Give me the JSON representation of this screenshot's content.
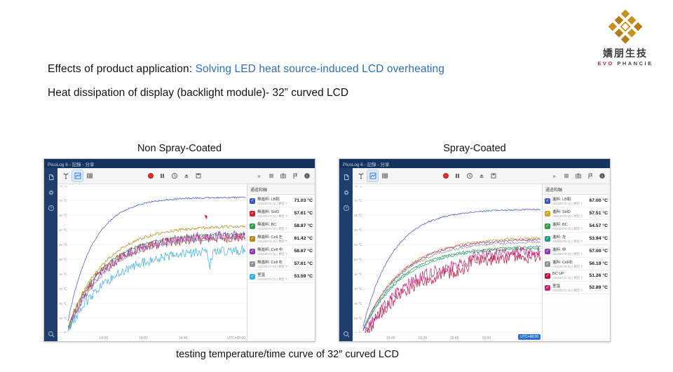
{
  "ui": {
    "more_glyph": "»",
    "check_glyph": "✓"
  },
  "slide": {
    "title_prefix": "Effects of product application: ",
    "title_highlight": "Solving LED heat source-induced LCD overheating",
    "subtitle": "Heat dissipation of display (backlight module)- 32” curved LCD",
    "caption": "testing temperature/time curve of 32″ curved LCD",
    "logo": {
      "brand_cn": "嬌朋生技",
      "brand_en_red": "EVO",
      "brand_en_rest": "PHANCIE",
      "gold": "#c8921e",
      "red": "#c0282d"
    }
  },
  "panels": [
    {
      "heading": "Non Spray-Coated",
      "window_title": "PicoLog 6 - 記錄 - 分享",
      "legend_header": "通道和軸",
      "utc_label": "UTC+08:00",
      "chart_data": {
        "type": "line",
        "yunit": "℃",
        "ylim": [
          25,
          75
        ],
        "ytick_step": 5,
        "x_ticks": [
          "14:00",
          "14:20",
          "14:40"
        ],
        "annotation": {
          "shape": "red-arrow",
          "x_frac": 0.78,
          "temp": 63.5,
          "color": "#d21f1f"
        },
        "series": [
          {
            "label": "無進料: LB和",
            "sub": "A0110/073 (1) | 類型 T",
            "display": "71.03 °C",
            "color": "#3a55c4",
            "start": 29,
            "end": 71.03,
            "rate": 7,
            "noise": 0.25,
            "seed": 11
          },
          {
            "label": "無進料: SHD",
            "sub": "A0110/073 (2) | 類型 T",
            "display": "57.61 °C",
            "color": "#cf2133",
            "start": 27,
            "end": 57.61,
            "rate": 5,
            "noise": 1.7,
            "seed": 23
          },
          {
            "label": "無進料: BC",
            "sub": "A0110/073 (3) | 類型 T",
            "display": "58.87 °C",
            "color": "#2f9e44",
            "start": 27,
            "end": 58.87,
            "rate": 5,
            "noise": 0.4,
            "seed": 37
          },
          {
            "label": "無進料: Cell 左",
            "sub": "A0110/073 (4) | 類型 T",
            "display": "61.42 °C",
            "color": "#b08c1a",
            "start": 26.5,
            "end": 61.42,
            "rate": 5,
            "noise": 0.5,
            "seed": 41
          },
          {
            "label": "無進料: Cell 中",
            "sub": "A0110/073 (5) | 類型 T",
            "display": "58.67 °C",
            "color": "#8f3ab5",
            "start": 26,
            "end": 58.67,
            "rate": 4.6,
            "noise": 1.6,
            "seed": 53
          },
          {
            "label": "無進料: Cell 右",
            "sub": "A0110/073 (6) | 類型 T",
            "display": "57.61 °C",
            "color": "#8d9399",
            "start": 26,
            "end": 57.61,
            "rate": 4.6,
            "noise": 0.5,
            "seed": 67
          },
          {
            "label": "室溫",
            "sub": "A0110/073 (7) | 類型 T",
            "display": "53.59 °C",
            "color": "#35b1e8",
            "start": 25.5,
            "end": 53.59,
            "rate": 4.2,
            "noise": 1.6,
            "seed": 79,
            "dip": {
              "at": 0.8,
              "depth": 5,
              "width": 0.02
            }
          }
        ]
      }
    },
    {
      "heading": "Spray-Coated",
      "window_title": "PicoLog 6 - 記錄 - 分享",
      "legend_header": "通道和軸",
      "utc_label": "UTC+08:00",
      "chart_data": {
        "type": "line",
        "yunit": "℃",
        "ylim": [
          25,
          75
        ],
        "ytick_step": 5,
        "x_ticks": [
          "15:00",
          "15:20",
          "15:40",
          "16:00"
        ],
        "series": [
          {
            "label": "進料: LB和",
            "sub": "A0110/079 (1) | 類型 T",
            "display": "67.00 °C",
            "color": "#3a55c4",
            "start": 27,
            "end": 67.0,
            "rate": 6,
            "noise": 0.25,
            "seed": 12
          },
          {
            "label": "進料: SHD",
            "sub": "A0110/079 (2) | 類型 T",
            "display": "57.51 °C",
            "color": "#d1a521",
            "start": 26,
            "end": 57.51,
            "rate": 4.6,
            "noise": 0.35,
            "seed": 24
          },
          {
            "label": "進料: BC",
            "sub": "A0110/079 (3) | 類型 T",
            "display": "54.57 °C",
            "color": "#2f9e44",
            "start": 26,
            "end": 54.57,
            "rate": 4.6,
            "noise": 0.35,
            "seed": 38
          },
          {
            "label": "進料: 左",
            "sub": "A0110/079 (4) | 類型 T",
            "display": "53.94 °C",
            "color": "#1d9e84",
            "start": 25.5,
            "end": 53.94,
            "rate": 4.6,
            "noise": 0.35,
            "seed": 42
          },
          {
            "label": "進料: 中",
            "sub": "A0110/079 (5) | 類型 T",
            "display": "57.00 °C",
            "color": "#8f3ab5",
            "start": 26,
            "end": 57.0,
            "rate": 4.6,
            "noise": 0.4,
            "seed": 54
          },
          {
            "label": "進料: Cell右",
            "sub": "A0110/079 (6) | 類型 T",
            "display": "56.19 °C",
            "color": "#8d9399",
            "start": 26,
            "end": 56.19,
            "rate": 4.6,
            "noise": 0.4,
            "seed": 68
          },
          {
            "label": "BC UP",
            "sub": "A0110/172 (1) | 類型 T",
            "display": "51.26 °C",
            "color": "#c2103c",
            "start": 25,
            "end": 51.26,
            "rate": 4.2,
            "noise": 2.1,
            "seed": 81,
            "step": {
              "at": 0.6,
              "delta": 2.5
            }
          },
          {
            "label": "室溫",
            "sub": "A0110/172 (2) | 類型 T",
            "display": "52.89 °C",
            "color": "#c0257e",
            "start": 25,
            "end": 52.89,
            "rate": 4.2,
            "noise": 2.1,
            "seed": 92,
            "step": {
              "at": 0.6,
              "delta": 2.0
            }
          }
        ]
      }
    }
  ]
}
